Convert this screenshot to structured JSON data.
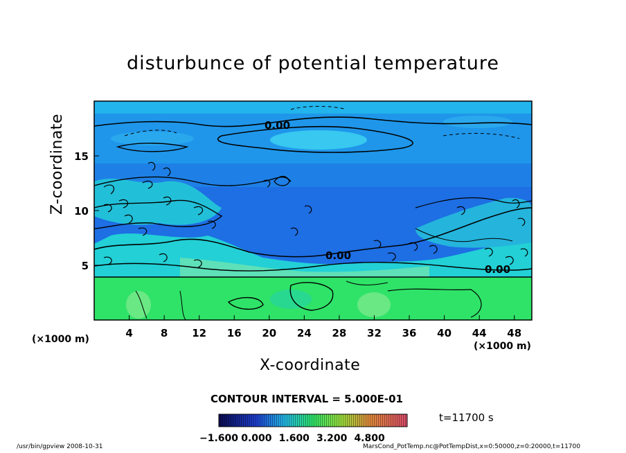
{
  "chart_data": {
    "type": "heatmap",
    "title": "disturbunce of potential temperature",
    "xlabel": "X-coordinate",
    "ylabel": "Z-coordinate",
    "x_unit": "(×1000 m)",
    "xlim": [
      0,
      50
    ],
    "ylim": [
      0,
      20
    ],
    "x_ticks": [
      "4",
      "8",
      "12",
      "16",
      "20",
      "24",
      "28",
      "32",
      "36",
      "40",
      "44",
      "48"
    ],
    "y_ticks": [
      "5",
      "10",
      "15"
    ],
    "contour_labels": [
      "0.00",
      "0.00",
      "0.00"
    ],
    "contour_interval_text": "CONTOUR INTERVAL = 5.000E-01",
    "time_text": "t=11700 s",
    "colorbar_ticks": [
      "−1.600",
      "0.000",
      "1.600",
      "3.200",
      "4.800"
    ],
    "colorbar_range": [
      -1.6,
      6.4
    ]
  },
  "footer": {
    "left": "/usr/bin/gpview   2008-10-31",
    "right": "MarsCond_PotTemp.nc@PotTempDist,x=0:50000,z=0:20000,t=11700"
  },
  "colors": {
    "upper_band": "#1f96ea",
    "mid_layer": "#1e6ee4",
    "lower_layer": "#2fe368",
    "cyan_patch": "#22d0d6"
  }
}
